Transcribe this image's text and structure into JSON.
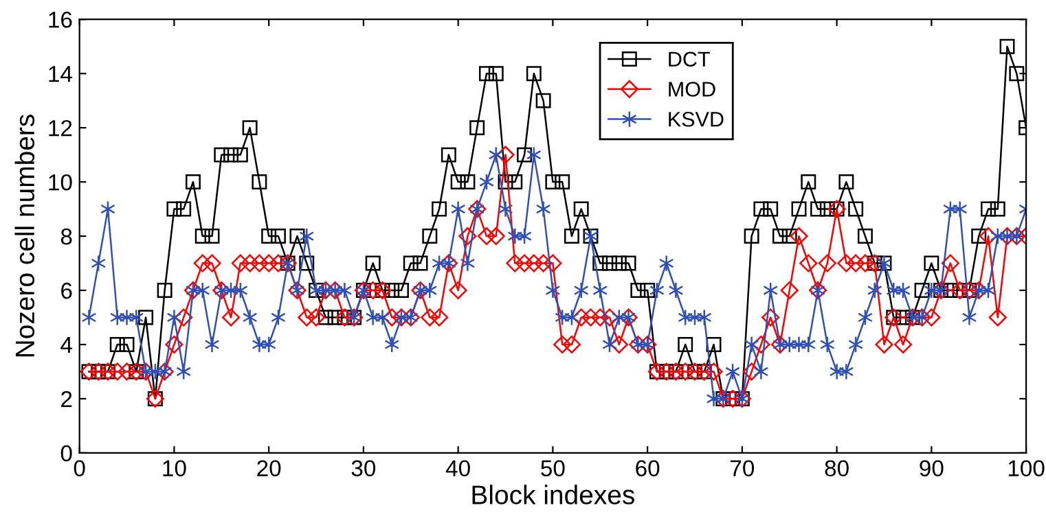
{
  "chart_data": {
    "type": "line",
    "xlabel": "Block indexes",
    "ylabel": "Nozero cell numbers",
    "xlim": [
      0,
      100
    ],
    "xticks": [
      0,
      10,
      20,
      30,
      40,
      50,
      60,
      70,
      80,
      90,
      100
    ],
    "ylim": [
      0,
      16
    ],
    "yticks": [
      0,
      2,
      4,
      6,
      8,
      10,
      12,
      14,
      16
    ],
    "grid": false,
    "legend": "top",
    "line_style": "solid",
    "x": [
      1,
      2,
      3,
      4,
      5,
      6,
      7,
      8,
      9,
      10,
      11,
      12,
      13,
      14,
      15,
      16,
      17,
      18,
      19,
      20,
      21,
      22,
      23,
      24,
      25,
      26,
      27,
      28,
      29,
      30,
      31,
      32,
      33,
      34,
      35,
      36,
      37,
      38,
      39,
      40,
      41,
      42,
      43,
      44,
      45,
      46,
      47,
      48,
      49,
      50,
      51,
      52,
      53,
      54,
      55,
      56,
      57,
      58,
      59,
      60,
      61,
      62,
      63,
      64,
      65,
      66,
      67,
      68,
      69,
      70,
      71,
      72,
      73,
      74,
      75,
      76,
      77,
      78,
      79,
      80,
      81,
      82,
      83,
      84,
      85,
      86,
      87,
      88,
      89,
      90,
      91,
      92,
      93,
      94,
      95,
      96,
      97,
      98,
      99,
      100
    ],
    "series": [
      {
        "name": "DCT",
        "color": "#000000",
        "marker": "square",
        "values": [
          3,
          3,
          3,
          4,
          4,
          3,
          5,
          2,
          6,
          9,
          9,
          10,
          8,
          8,
          11,
          11,
          11,
          12,
          10,
          8,
          8,
          7,
          8,
          7,
          6,
          5,
          5,
          5,
          5,
          6,
          7,
          6,
          6,
          6,
          7,
          7,
          8,
          9,
          11,
          10,
          10,
          12,
          14,
          14,
          10,
          10,
          11,
          14,
          13,
          10,
          10,
          8,
          9,
          8,
          7,
          7,
          7,
          7,
          6,
          6,
          3,
          3,
          3,
          4,
          3,
          3,
          4,
          2,
          2,
          2,
          8,
          9,
          9,
          8,
          8,
          9,
          10,
          9,
          9,
          9,
          10,
          9,
          8,
          7,
          7,
          5,
          5,
          5,
          6,
          7,
          6,
          6,
          6,
          6,
          8,
          9,
          9,
          15,
          14,
          12
        ]
      },
      {
        "name": "MOD",
        "color": "#ff0000",
        "marker": "diamond",
        "values": [
          3,
          3,
          3,
          3,
          3,
          3,
          3,
          2,
          3,
          4,
          5,
          6,
          7,
          7,
          6,
          5,
          7,
          7,
          7,
          7,
          7,
          7,
          6,
          5,
          5,
          6,
          6,
          5,
          5,
          6,
          6,
          6,
          5,
          5,
          5,
          6,
          5,
          5,
          7,
          6,
          8,
          9,
          8,
          8,
          11,
          7,
          7,
          7,
          7,
          7,
          4,
          4,
          5,
          5,
          5,
          5,
          4,
          5,
          4,
          4,
          3,
          3,
          3,
          3,
          3,
          3,
          3,
          2,
          2,
          2,
          3,
          4,
          5,
          4,
          6,
          8,
          7,
          6,
          7,
          9,
          7,
          7,
          7,
          7,
          4,
          5,
          4,
          5,
          5,
          5,
          6,
          7,
          6,
          6,
          6,
          8,
          5,
          8,
          8,
          8
        ]
      },
      {
        "name": "KSVD",
        "color": "#3050b8",
        "marker": "cross",
        "values": [
          5,
          7,
          9,
          5,
          5,
          5,
          3,
          3,
          3,
          5,
          3,
          6,
          6,
          4,
          6,
          6,
          6,
          5,
          4,
          4,
          5,
          7,
          6,
          8,
          6,
          6,
          6,
          6,
          5,
          6,
          5,
          5,
          4,
          5,
          5,
          6,
          6,
          7,
          7,
          9,
          7,
          9,
          10,
          11,
          9,
          8,
          8,
          11,
          9,
          6,
          5,
          5,
          6,
          8,
          6,
          4,
          5,
          5,
          4,
          4,
          6,
          7,
          6,
          5,
          5,
          5,
          2,
          2,
          3,
          2,
          4,
          3,
          6,
          4,
          4,
          4,
          4,
          6,
          4,
          3,
          3,
          4,
          5,
          6,
          7,
          6,
          6,
          5,
          5,
          6,
          6,
          9,
          9,
          5,
          6,
          6,
          8,
          8,
          8,
          9
        ]
      }
    ]
  }
}
